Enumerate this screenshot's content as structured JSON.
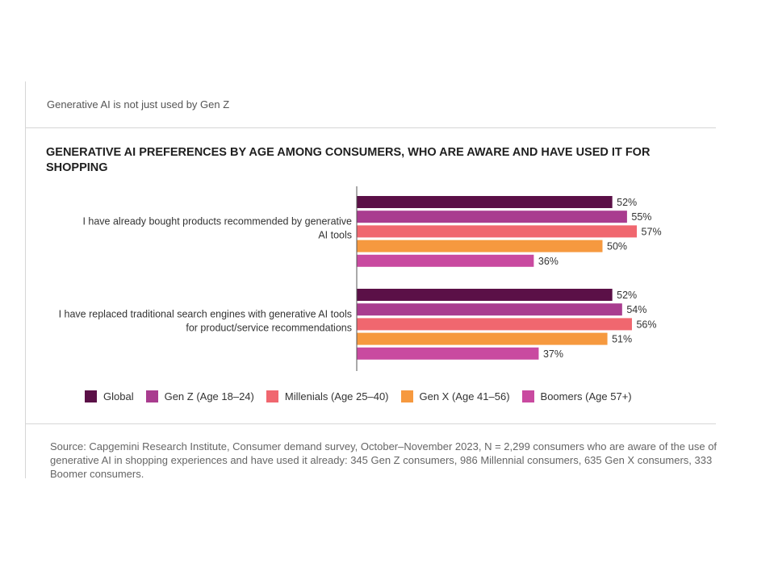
{
  "header": {
    "subtitle": "Generative AI is not just used by Gen Z",
    "title": "GENERATIVE AI PREFERENCES BY AGE AMONG CONSUMERS, WHO ARE AWARE AND HAVE USED IT FOR SHOPPING"
  },
  "chart_data": {
    "type": "bar",
    "orientation": "horizontal",
    "title": "GENERATIVE AI PREFERENCES BY AGE AMONG CONSUMERS, WHO ARE AWARE AND HAVE USED IT FOR SHOPPING",
    "categories": [
      [
        "I have already bought products recommended by generative",
        "AI tools"
      ],
      [
        "I have replaced traditional search engines with generative AI tools",
        "for product/service recommendations"
      ]
    ],
    "series": [
      {
        "name": "Global",
        "color": "#5b1047",
        "values": [
          52,
          52
        ],
        "labels": [
          "52%",
          "52%"
        ]
      },
      {
        "name": "Gen Z (Age 18–24)",
        "color": "#a93c8f",
        "values": [
          55,
          54
        ],
        "labels": [
          "55%",
          "54%"
        ]
      },
      {
        "name": "Millenials (Age 25–40)",
        "color": "#f0676f",
        "values": [
          57,
          56
        ],
        "labels": [
          "57%",
          "56%"
        ]
      },
      {
        "name": "Gen X (Age 41–56)",
        "color": "#f6993f",
        "values": [
          50,
          51
        ],
        "labels": [
          "50%",
          "51%"
        ]
      },
      {
        "name": "Boomers (Age 57+)",
        "color": "#c94aa0",
        "values": [
          36,
          37
        ],
        "labels": [
          "36%",
          "37%"
        ]
      }
    ],
    "xlim": [
      0,
      100
    ],
    "grid": false,
    "legend_position": "bottom"
  },
  "footer": {
    "source": "Source: Capgemini Research Institute, Consumer demand survey, October–November 2023, N = 2,299 consumers who are aware of the use of generative AI in shopping experiences and have used it already: 345 Gen Z consumers, 986 Millennial consumers, 635 Gen X consumers, 333 Boomer consumers."
  }
}
